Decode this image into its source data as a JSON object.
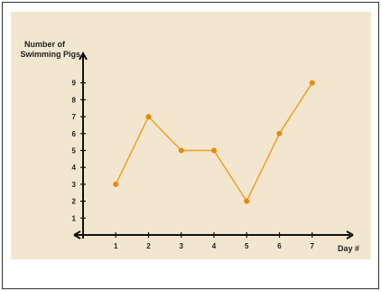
{
  "colors": {
    "background": "#f2e6cf",
    "line": "#f0a024",
    "marker": "#e8870c",
    "axis": "#111111",
    "border": "#333333"
  },
  "chart_data": {
    "type": "line",
    "title": "",
    "ylabel_lines": [
      "Number of",
      "Swimming Pigs"
    ],
    "xlabel": "Day #",
    "x": [
      1,
      2,
      3,
      4,
      5,
      6,
      7
    ],
    "x_tick_labels": [
      "1",
      "2",
      "3",
      "4",
      "5",
      "6",
      "7"
    ],
    "y_tick_labels": [
      "1",
      "2",
      "3",
      "4",
      "5",
      "6",
      "7",
      "8",
      "9"
    ],
    "y_ticks": [
      1,
      2,
      3,
      4,
      5,
      6,
      7,
      8,
      9
    ],
    "series": [
      {
        "values": [
          3,
          7,
          5,
          5,
          2,
          6,
          9
        ]
      }
    ],
    "xlim": [
      0,
      8
    ],
    "ylim": [
      0,
      10
    ],
    "grid": false,
    "legend": "none",
    "markers": "filled-circle"
  }
}
